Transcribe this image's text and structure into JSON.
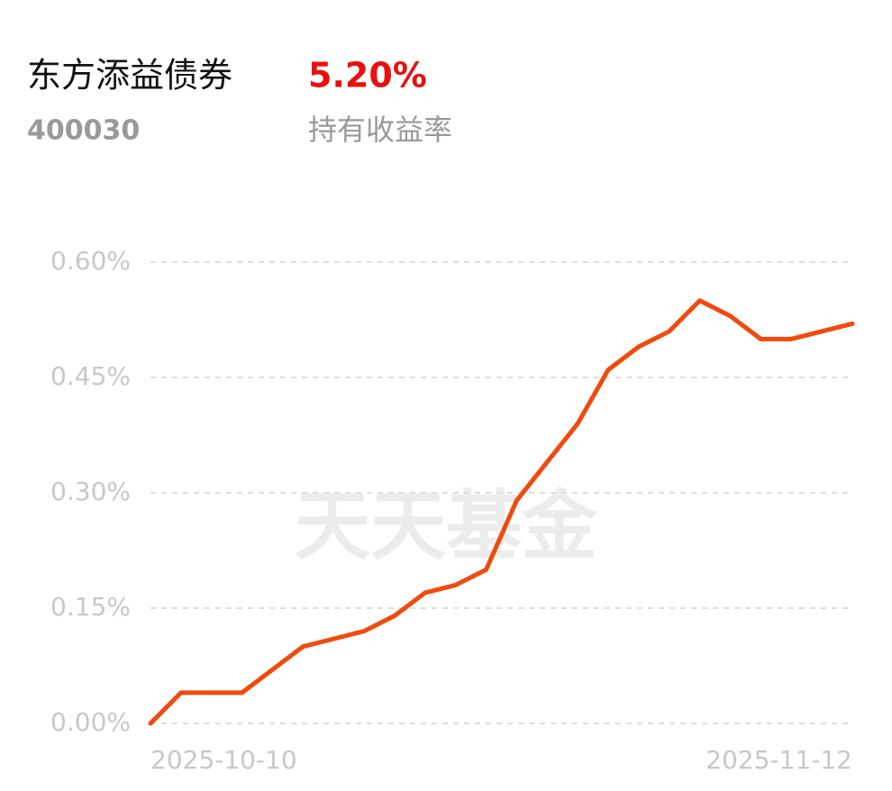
{
  "chart_data": {
    "type": "line",
    "title": "东方添益债券",
    "highlight": "5.20%",
    "code": "400030",
    "highlight_label": "持有收益率",
    "watermark": "天天基金",
    "categories": [
      "2025-10-10",
      null,
      null,
      null,
      null,
      null,
      null,
      null,
      null,
      null,
      null,
      null,
      null,
      null,
      null,
      null,
      null,
      null,
      null,
      null,
      null,
      null,
      null,
      "2025-11-12"
    ],
    "series": [
      {
        "color": "#f04a0e",
        "values": [
          0,
          0.04,
          0.04,
          0.04,
          0.07,
          0.1,
          0.11,
          0.12,
          0.14,
          0.17,
          0.18,
          0.2,
          0.29,
          0.34,
          0.39,
          0.46,
          0.49,
          0.51,
          0.55,
          0.53,
          0.5,
          0.5,
          0.51,
          0.52
        ]
      }
    ],
    "ylim": [
      0,
      0.6
    ],
    "yticks": [
      {
        "value": 0,
        "label": "0.00%"
      },
      {
        "value": 0.15,
        "label": "0.15%"
      },
      {
        "value": 0.3,
        "label": "0.30%"
      },
      {
        "value": 0.45,
        "label": "0.45%"
      },
      {
        "value": 0.6,
        "label": "0.60%"
      }
    ],
    "grid": true
  }
}
